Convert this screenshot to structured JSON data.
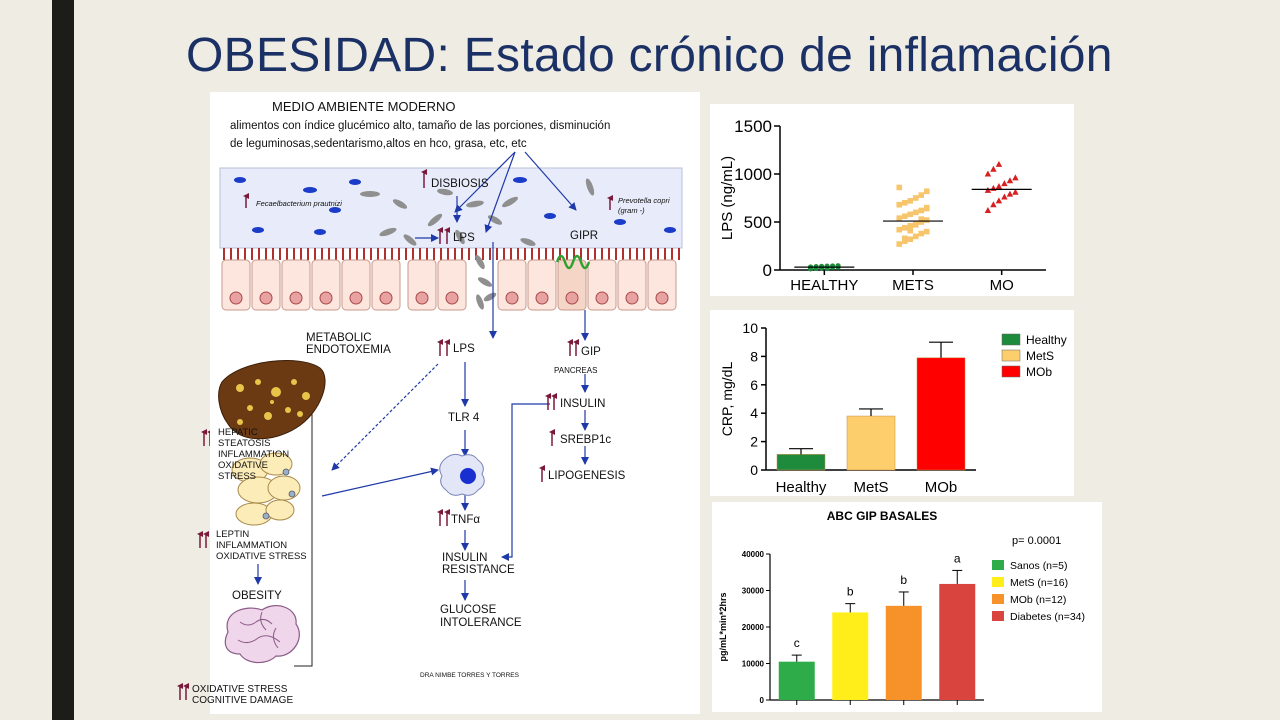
{
  "slide": {
    "title": "OBESIDAD: Estado crónico de inflamación"
  },
  "diagram": {
    "header": "MEDIO  AMBIENTE MODERNO",
    "header_line1": "alimentos con índice glucémico alto, tamaño de las porciones, disminución",
    "header_line2": "de leguminosas,sedentarismo,altos en hco, grasa, etc, etc",
    "disbiosis": "DISBIOSIS",
    "faecali": "Fecaelbacterium prautnizi",
    "prevotella": "Prevotella copri",
    "prevotella_gram": "(gram  -)",
    "lps_gut": "LPS",
    "gipr": "GIPR",
    "metabolic": "METABOLIC",
    "endotoxemia": "ENDOTOXEMIA",
    "lps_blood": "LPS",
    "gip": "GIP",
    "pancreas": "PANCREAS",
    "insulin": "INSULIN",
    "tlr4": "TLR 4",
    "srebp": "SREBP1c",
    "lipogenesis": "LIPOGENESIS",
    "hepatic": [
      "HEPATIC",
      "STEATOSIS",
      "INFLAMMATION",
      "OXIDATIVE",
      "STRESS"
    ],
    "leptin": [
      "LEPTIN",
      "INFLAMMATION",
      "OXIDATIVE STRESS"
    ],
    "tnf": "TNFα",
    "insulin_resistance": [
      "INSULIN",
      "RESISTANCE"
    ],
    "glucose_intolerance": [
      "GLUCOSE",
      "INTOLERANCE"
    ],
    "obesity": "OBESITY",
    "oxidative_brain": [
      "OXIDATIVE STRESS",
      "COGNITIVE DAMAGE"
    ],
    "credit": "DRA NIMBE TORRES Y TORRES"
  },
  "chart_data": [
    {
      "id": "lps",
      "type": "scatter",
      "ylabel": "LPS (ng/mL)",
      "ylim": [
        0,
        1500
      ],
      "yticks": [
        0,
        500,
        1000,
        1500
      ],
      "categories": [
        "HEALTHY",
        "METS",
        "MO"
      ],
      "colors": [
        "#1e8a3c",
        "#f7c56b",
        "#d81f1f"
      ],
      "markers": [
        "circle",
        "square",
        "triangle"
      ],
      "means": [
        30,
        510,
        840
      ],
      "points": [
        [
          12,
          18,
          22,
          25,
          28,
          30,
          32,
          35,
          38,
          40,
          42,
          45,
          20,
          26,
          34,
          15
        ],
        [
          270,
          300,
          320,
          350,
          380,
          400,
          420,
          440,
          460,
          480,
          500,
          520,
          540,
          560,
          580,
          600,
          620,
          650,
          680,
          700,
          720,
          750,
          780,
          820,
          860,
          330,
          410,
          470,
          530,
          640
        ],
        [
          620,
          680,
          720,
          760,
          790,
          810,
          830,
          850,
          870,
          900,
          930,
          960,
          1000,
          1050,
          1100
        ]
      ]
    },
    {
      "id": "crp",
      "type": "bar",
      "ylabel": "CRP, mg/dL",
      "ylim": [
        0,
        10
      ],
      "yticks": [
        0,
        2,
        4,
        6,
        8,
        10
      ],
      "categories": [
        "Healthy",
        "MetS",
        "MOb"
      ],
      "values": [
        1.1,
        3.8,
        7.9
      ],
      "errors": [
        0.4,
        0.5,
        1.1
      ],
      "colors": [
        "#1e8a3c",
        "#fdcf6c",
        "#ff0000"
      ],
      "legend": [
        "Healthy",
        "MetS",
        "MOb"
      ],
      "legend_position": "top-right"
    },
    {
      "id": "gip",
      "type": "bar",
      "title": "ABC GIP BASALES",
      "ylabel": "pg/mL*min*2hrs",
      "annotation": "p= 0.0001",
      "ylim": [
        0,
        40000
      ],
      "yticks": [
        0,
        10000,
        20000,
        30000,
        40000
      ],
      "values": [
        10500,
        24000,
        25800,
        31800
      ],
      "errors": [
        1800,
        2400,
        3800,
        3700
      ],
      "letters": [
        "c",
        "b",
        "b",
        "a"
      ],
      "colors": [
        "#2eac4a",
        "#ffee1a",
        "#f7922a",
        "#d9443f"
      ],
      "legend": [
        "Sanos (n=5)",
        "MetS (n=16)",
        "MOb (n=12)",
        "Diabetes (n=34)"
      ],
      "legend_position": "top-right"
    }
  ]
}
